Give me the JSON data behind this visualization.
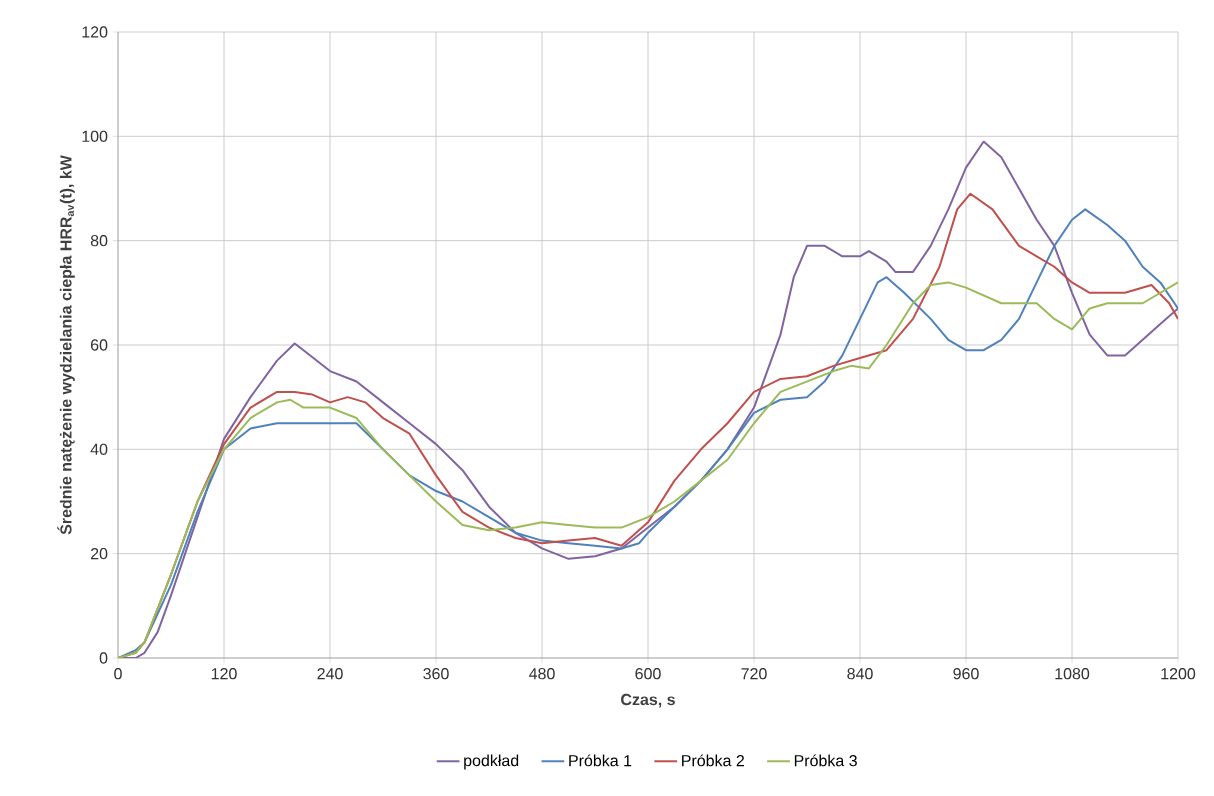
{
  "chart_data": {
    "type": "line",
    "xlabel": "Czas,  s",
    "ylabel": "Średnie natężenie wydzielania ciepła HRR$_{av}$(t),  kW",
    "xlim": [
      0,
      1200
    ],
    "ylim": [
      0,
      120
    ],
    "xticks": [
      0,
      120,
      240,
      360,
      480,
      600,
      720,
      840,
      960,
      1080,
      1200
    ],
    "yticks": [
      0,
      20,
      40,
      60,
      80,
      100,
      120
    ],
    "grid": true,
    "legend": "bottom",
    "marker": "none",
    "line_style": "solid",
    "series": [
      {
        "name": "podkład",
        "color": "#8064a2",
        "x": [
          0,
          20,
          30,
          45,
          60,
          90,
          120,
          150,
          180,
          200,
          210,
          240,
          270,
          300,
          330,
          360,
          390,
          420,
          450,
          480,
          510,
          540,
          570,
          600,
          630,
          660,
          690,
          720,
          750,
          765,
          780,
          800,
          820,
          840,
          850,
          870,
          880,
          900,
          920,
          940,
          960,
          980,
          1000,
          1020,
          1040,
          1060,
          1080,
          1100,
          1120,
          1140,
          1160,
          1180,
          1200
        ],
        "values": [
          0,
          0,
          1,
          5,
          12,
          27,
          42,
          50,
          57,
          60.3,
          59,
          55,
          53,
          49,
          45,
          41,
          36,
          29,
          24,
          21,
          19,
          19.5,
          21,
          25,
          29,
          34,
          40,
          48,
          62,
          73,
          79,
          79,
          77,
          77,
          78,
          76,
          74,
          74,
          79,
          86,
          94,
          99,
          96,
          90,
          84,
          79,
          70,
          62,
          58,
          58,
          61,
          64,
          67
        ]
      },
      {
        "name": "Próbka 1",
        "color": "#4f81bd",
        "x": [
          0,
          20,
          30,
          60,
          90,
          120,
          150,
          180,
          200,
          240,
          270,
          300,
          330,
          360,
          390,
          420,
          450,
          480,
          510,
          540,
          570,
          590,
          600,
          630,
          660,
          690,
          720,
          750,
          780,
          800,
          820,
          840,
          860,
          870,
          890,
          920,
          940,
          960,
          980,
          1000,
          1020,
          1040,
          1060,
          1080,
          1095,
          1120,
          1140,
          1160,
          1180,
          1200
        ],
        "values": [
          0,
          1.5,
          3,
          14,
          28,
          40,
          44,
          45,
          45,
          45,
          45,
          40,
          35,
          32,
          30,
          27,
          24,
          22.5,
          22,
          21.5,
          21,
          22,
          24,
          29,
          34,
          40,
          47,
          49.5,
          50,
          53,
          58,
          65,
          72,
          73,
          70,
          65,
          61,
          59,
          59,
          61,
          65,
          72,
          79,
          84,
          86,
          83,
          80,
          75,
          72,
          67
        ]
      },
      {
        "name": "Próbka 2",
        "color": "#c0504d",
        "x": [
          0,
          20,
          30,
          60,
          90,
          120,
          150,
          180,
          200,
          220,
          240,
          260,
          280,
          300,
          330,
          360,
          390,
          420,
          450,
          480,
          510,
          540,
          570,
          600,
          630,
          660,
          690,
          720,
          750,
          780,
          810,
          840,
          870,
          900,
          930,
          950,
          965,
          990,
          1020,
          1040,
          1060,
          1080,
          1100,
          1140,
          1170,
          1190,
          1200
        ],
        "values": [
          0,
          1,
          3,
          16,
          30,
          41,
          48,
          51,
          51,
          50.5,
          49,
          50,
          49,
          46,
          43,
          35,
          28,
          25,
          23,
          22,
          22.5,
          23,
          21.5,
          26,
          34,
          40,
          45,
          51,
          53.5,
          54,
          56,
          57.5,
          59,
          65,
          75,
          86,
          89,
          86,
          79,
          77,
          75,
          72,
          70,
          70,
          71.5,
          68,
          65
        ]
      },
      {
        "name": "Próbka 3",
        "color": "#9bbb59",
        "x": [
          0,
          20,
          30,
          60,
          90,
          120,
          150,
          180,
          195,
          210,
          240,
          270,
          300,
          330,
          360,
          390,
          420,
          450,
          480,
          510,
          540,
          570,
          600,
          630,
          660,
          690,
          720,
          750,
          780,
          810,
          830,
          850,
          870,
          900,
          920,
          940,
          960,
          1000,
          1040,
          1060,
          1080,
          1100,
          1120,
          1160,
          1200
        ],
        "values": [
          0,
          1,
          3,
          16,
          30,
          40,
          46,
          49,
          49.5,
          48,
          48,
          46,
          40,
          35,
          30,
          25.5,
          24.5,
          25,
          26,
          25.5,
          25,
          25,
          27,
          30,
          34,
          38,
          45,
          51,
          53,
          55,
          56,
          55.5,
          60,
          68,
          71.5,
          72,
          71,
          68,
          68,
          65,
          63,
          67,
          68,
          68,
          72
        ]
      }
    ]
  }
}
